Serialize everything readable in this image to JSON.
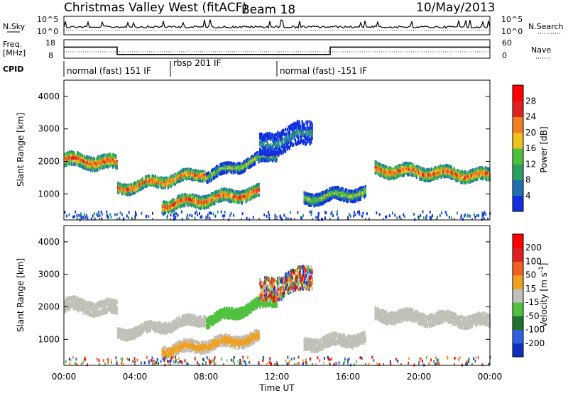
{
  "header": {
    "site": "Christmas Valley West (fitACF)",
    "beam": "Beam 18",
    "date": "10/May/2013"
  },
  "nsky_panel": {
    "left_label": "N.Sky",
    "right_label": "N.Search",
    "left_ticks": [
      "10^5",
      "10^0"
    ],
    "right_ticks": [
      "10^5",
      "10^0"
    ]
  },
  "freq_panel": {
    "left_label_1": "Freq.",
    "left_label_2": "[MHz]",
    "right_label": "Nave",
    "left_ticks": [
      "18",
      "8"
    ],
    "right_ticks": [
      "60",
      "0"
    ],
    "freq_steps": [
      {
        "start_h": 0,
        "end_h": 3,
        "value": 14
      },
      {
        "start_h": 3,
        "end_h": 15,
        "value": 10
      },
      {
        "start_h": 15,
        "end_h": 24,
        "value": 14
      }
    ]
  },
  "cpid": {
    "label": "CPID",
    "segments": [
      {
        "start_h": 0,
        "end_h": 6,
        "text": "normal (fast) 151 IF"
      },
      {
        "start_h": 6,
        "end_h": 12,
        "text": "rbsp 201 IF"
      },
      {
        "start_h": 12,
        "end_h": 24,
        "text": "normal (fast) -151 IF"
      }
    ]
  },
  "chart_data": [
    {
      "type": "heatmap",
      "name": "power",
      "ylabel": "Slant Range [km]",
      "ylim": [
        200,
        4500
      ],
      "xlim_hours": [
        0,
        24
      ],
      "yticks": [
        1000,
        2000,
        3000,
        4000
      ],
      "colorbar": {
        "label": "Power [dB]",
        "range": [
          0,
          32
        ],
        "tick_labels": [
          "4",
          "8",
          "12",
          "16",
          "20",
          "24",
          "28"
        ],
        "colors": [
          "#1030e0",
          "#2070b0",
          "#2aa060",
          "#4cc040",
          "#f0c020",
          "#f08020",
          "#e02020",
          "#ff0000"
        ]
      }
    },
    {
      "type": "heatmap",
      "name": "velocity",
      "ylabel": "Slant Range [km]",
      "ylim": [
        200,
        4500
      ],
      "xlim_hours": [
        0,
        24
      ],
      "yticks": [
        1000,
        2000,
        3000,
        4000
      ],
      "xlabel": "Time UT",
      "xtick_labels": [
        "00:00",
        "04:00",
        "08:00",
        "12:00",
        "16:00",
        "20:00",
        "00:00"
      ],
      "colorbar": {
        "label_main": "Velocity [m s",
        "label_sup": "-1",
        "label_end": "]",
        "tick_labels": [
          "200",
          "100",
          "50",
          "15",
          "-15",
          "-50",
          "-100",
          "-200"
        ],
        "colors": [
          "#1030c0",
          "#3060e0",
          "#207030",
          "#50c040",
          "#c0c0b8",
          "#f0a020",
          "#f06020",
          "#e02020",
          "#ff0000"
        ]
      }
    }
  ],
  "colors": {
    "background": "#ffffff",
    "frame": "#000000",
    "ground_scatter": "#c0c0b8"
  }
}
